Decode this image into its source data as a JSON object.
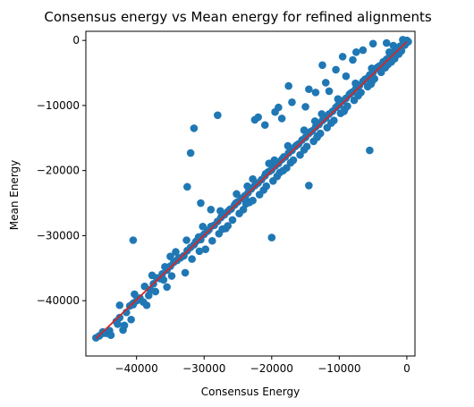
{
  "chart_data": {
    "type": "scatter",
    "title": "Consensus energy vs Mean energy for refined alignments",
    "xlabel": "Consensus Energy",
    "ylabel": "Mean Energy",
    "xlim": [
      -47500,
      1200
    ],
    "ylim": [
      -48500,
      1400
    ],
    "grid": false,
    "x_ticks": [
      -40000,
      -30000,
      -20000,
      -10000,
      0
    ],
    "x_tick_labels": [
      "−40000",
      "−30000",
      "−20000",
      "−10000",
      "0"
    ],
    "y_ticks": [
      -40000,
      -30000,
      -20000,
      -10000,
      0
    ],
    "y_tick_labels": [
      "−40000",
      "−30000",
      "−20000",
      "−10000",
      "0"
    ],
    "colors": {
      "points": "#1f77b4",
      "fit_line": "#d62728"
    },
    "fit_line": {
      "x": [
        -46000,
        0
      ],
      "y": [
        -45800,
        -200
      ]
    },
    "series": [
      {
        "points": [
          [
            -46000,
            -45700
          ],
          [
            -45500,
            -45400
          ],
          [
            -45000,
            -44800
          ],
          [
            -44500,
            -45000
          ],
          [
            -44000,
            -44600
          ],
          [
            -43800,
            -45300
          ],
          [
            -43000,
            -43200
          ],
          [
            -42500,
            -42600
          ],
          [
            -42000,
            -44500
          ],
          [
            -41800,
            -43800
          ],
          [
            -41500,
            -41800
          ],
          [
            -41000,
            -40800
          ],
          [
            -40800,
            -42900
          ],
          [
            -40500,
            -40400
          ],
          [
            -40000,
            -40000
          ],
          [
            -39500,
            -39600
          ],
          [
            -39000,
            -40200
          ],
          [
            -38800,
            -37800
          ],
          [
            -38500,
            -40700
          ],
          [
            -38000,
            -38300
          ],
          [
            -37500,
            -37400
          ],
          [
            -37200,
            -38600
          ],
          [
            -37000,
            -36500
          ],
          [
            -36500,
            -36600
          ],
          [
            -36000,
            -36800
          ],
          [
            -35800,
            -34800
          ],
          [
            -35500,
            -35300
          ],
          [
            -35000,
            -34700
          ],
          [
            -34800,
            -36200
          ],
          [
            -34500,
            -34100
          ],
          [
            -34200,
            -32500
          ],
          [
            -34000,
            -33800
          ],
          [
            -33500,
            -33400
          ],
          [
            -33000,
            -33100
          ],
          [
            -32800,
            -35700
          ],
          [
            -32500,
            -32300
          ],
          [
            -32000,
            -31800
          ],
          [
            -31800,
            -33600
          ],
          [
            -31500,
            -31400
          ],
          [
            -31000,
            -30700
          ],
          [
            -30800,
            -30200
          ],
          [
            -30500,
            -30600
          ],
          [
            -30000,
            -29800
          ],
          [
            -29800,
            -32100
          ],
          [
            -29500,
            -29300
          ],
          [
            -29000,
            -28600
          ],
          [
            -28800,
            -30800
          ],
          [
            -28500,
            -28400
          ],
          [
            -28000,
            -27800
          ],
          [
            -27800,
            -29700
          ],
          [
            -27500,
            -27200
          ],
          [
            -27000,
            -26800
          ],
          [
            -26800,
            -28900
          ],
          [
            -26500,
            -26300
          ],
          [
            -26000,
            -25900
          ],
          [
            -25800,
            -27600
          ],
          [
            -25500,
            -25300
          ],
          [
            -25000,
            -24800
          ],
          [
            -24800,
            -26600
          ],
          [
            -24500,
            -24300
          ],
          [
            -24200,
            -26000
          ],
          [
            -24000,
            -23900
          ],
          [
            -23800,
            -25100
          ],
          [
            -23500,
            -23400
          ],
          [
            -23000,
            -22800
          ],
          [
            -22800,
            -24600
          ],
          [
            -22500,
            -22300
          ],
          [
            -22000,
            -21900
          ],
          [
            -21800,
            -23700
          ],
          [
            -21500,
            -21400
          ],
          [
            -21200,
            -23000
          ],
          [
            -21000,
            -20800
          ],
          [
            -20800,
            -22400
          ],
          [
            -20500,
            -20200
          ],
          [
            -20000,
            -19900
          ],
          [
            -19800,
            -21600
          ],
          [
            -19500,
            -19300
          ],
          [
            -19200,
            -20900
          ],
          [
            -19000,
            -18900
          ],
          [
            -18800,
            -20300
          ],
          [
            -18500,
            -18300
          ],
          [
            -18000,
            -17900
          ],
          [
            -17800,
            -19600
          ],
          [
            -17500,
            -17300
          ],
          [
            -17200,
            -18800
          ],
          [
            -17000,
            -16900
          ],
          [
            -16800,
            -18400
          ],
          [
            -16500,
            -16300
          ],
          [
            -16000,
            -15900
          ],
          [
            -15800,
            -17600
          ],
          [
            -15500,
            -15300
          ],
          [
            -15200,
            -16800
          ],
          [
            -15000,
            -14900
          ],
          [
            -14800,
            -16300
          ],
          [
            -14500,
            -14300
          ],
          [
            -14000,
            -13900
          ],
          [
            -13800,
            -15500
          ],
          [
            -13500,
            -13300
          ],
          [
            -13200,
            -14700
          ],
          [
            -13000,
            -12900
          ],
          [
            -12800,
            -14300
          ],
          [
            -12500,
            -12300
          ],
          [
            -12000,
            -11900
          ],
          [
            -11800,
            -13400
          ],
          [
            -11500,
            -11300
          ],
          [
            -11200,
            -12700
          ],
          [
            -11000,
            -10900
          ],
          [
            -10800,
            -12300
          ],
          [
            -10500,
            -10300
          ],
          [
            -10000,
            -9900
          ],
          [
            -9800,
            -11200
          ],
          [
            -9500,
            -9300
          ],
          [
            -9200,
            -10600
          ],
          [
            -9000,
            -8900
          ],
          [
            -8800,
            -10100
          ],
          [
            -8500,
            -8300
          ],
          [
            -8000,
            -7900
          ],
          [
            -7800,
            -9200
          ],
          [
            -7500,
            -7300
          ],
          [
            -7200,
            -8500
          ],
          [
            -7000,
            -6900
          ],
          [
            -6800,
            -8000
          ],
          [
            -6500,
            -6300
          ],
          [
            -6000,
            -5900
          ],
          [
            -5800,
            -7100
          ],
          [
            -5500,
            -5300
          ],
          [
            -5200,
            -6400
          ],
          [
            -5000,
            -4900
          ],
          [
            -4800,
            -5900
          ],
          [
            -4500,
            -4300
          ],
          [
            -4000,
            -3900
          ],
          [
            -3800,
            -4900
          ],
          [
            -3500,
            -3300
          ],
          [
            -3200,
            -4200
          ],
          [
            -3000,
            -2900
          ],
          [
            -2800,
            -3700
          ],
          [
            -2500,
            -2300
          ],
          [
            -2000,
            -1900
          ],
          [
            -1800,
            -2800
          ],
          [
            -1500,
            -1300
          ],
          [
            -1200,
            -2100
          ],
          [
            -1000,
            -900
          ],
          [
            -800,
            -1600
          ],
          [
            -500,
            -300
          ],
          [
            -300,
            -700
          ],
          [
            -200,
            -100
          ],
          [
            -100,
            -400
          ],
          [
            0,
            0
          ],
          [
            200,
            -200
          ],
          [
            -600,
            100
          ],
          [
            -45000,
            -45000
          ],
          [
            -40500,
            -40600
          ],
          [
            -36200,
            -35900
          ],
          [
            -31200,
            -30900
          ],
          [
            -26200,
            -26000
          ],
          [
            -22200,
            -22000
          ],
          [
            -18200,
            -17900
          ],
          [
            -14200,
            -14000
          ],
          [
            -10200,
            -10000
          ],
          [
            -6200,
            -6000
          ],
          [
            -2200,
            -2000
          ],
          [
            -33800,
            -33500
          ],
          [
            -29300,
            -29100
          ],
          [
            -25300,
            -25000
          ],
          [
            -20300,
            -20100
          ],
          [
            -16300,
            -16100
          ],
          [
            -12300,
            -12100
          ],
          [
            -8300,
            -8100
          ],
          [
            -4300,
            -4100
          ],
          [
            -1300,
            -1100
          ],
          [
            -42500,
            -40700
          ],
          [
            -40300,
            -39000
          ],
          [
            -37700,
            -36100
          ],
          [
            -35000,
            -33200
          ],
          [
            -32600,
            -30700
          ],
          [
            -30200,
            -28600
          ],
          [
            -27600,
            -26200
          ],
          [
            -25200,
            -23600
          ],
          [
            -22800,
            -21300
          ],
          [
            -20400,
            -18900
          ],
          [
            -17600,
            -16200
          ],
          [
            -15200,
            -13800
          ],
          [
            -12600,
            -11300
          ],
          [
            -10200,
            -9000
          ],
          [
            -7600,
            -6600
          ],
          [
            -5200,
            -4300
          ],
          [
            -2600,
            -1800
          ],
          [
            -23600,
            -22400
          ],
          [
            -19600,
            -18400
          ],
          [
            -13600,
            -12400
          ],
          [
            -30700,
            -32400
          ],
          [
            -27300,
            -29000
          ],
          [
            -23300,
            -24900
          ],
          [
            -18300,
            -20000
          ],
          [
            -13300,
            -14900
          ],
          [
            -9300,
            -10900
          ],
          [
            -5300,
            -6700
          ],
          [
            -2300,
            -3300
          ],
          [
            -40500,
            -30700
          ],
          [
            -32000,
            -17300
          ],
          [
            -31500,
            -13500
          ],
          [
            -32500,
            -22500
          ],
          [
            -30500,
            -25000
          ],
          [
            -29000,
            -26000
          ],
          [
            -28000,
            -11500
          ],
          [
            -22500,
            -12200
          ],
          [
            -22000,
            -11800
          ],
          [
            -21000,
            -13000
          ],
          [
            -19500,
            -11000
          ],
          [
            -19000,
            -10300
          ],
          [
            -18500,
            -12000
          ],
          [
            -17500,
            -7000
          ],
          [
            -17000,
            -9500
          ],
          [
            -15000,
            -10200
          ],
          [
            -14500,
            -7500
          ],
          [
            -13500,
            -8000
          ],
          [
            -12500,
            -3800
          ],
          [
            -12000,
            -6500
          ],
          [
            -11500,
            -7800
          ],
          [
            -10500,
            -4500
          ],
          [
            -9500,
            -2500
          ],
          [
            -9000,
            -5500
          ],
          [
            -8000,
            -3000
          ],
          [
            -7500,
            -1800
          ],
          [
            -6500,
            -1500
          ],
          [
            -5000,
            -500
          ],
          [
            -3000,
            -400
          ],
          [
            -2000,
            -800
          ],
          [
            -20000,
            -30300
          ],
          [
            -14500,
            -22300
          ],
          [
            -5500,
            -16900
          ],
          [
            -26500,
            -28500
          ],
          [
            -17200,
            -16700
          ],
          [
            -20900,
            -20500
          ],
          [
            -23900,
            -24200
          ],
          [
            -35500,
            -37900
          ],
          [
            -38200,
            -39200
          ],
          [
            -42800,
            -43600
          ]
        ]
      }
    ]
  }
}
